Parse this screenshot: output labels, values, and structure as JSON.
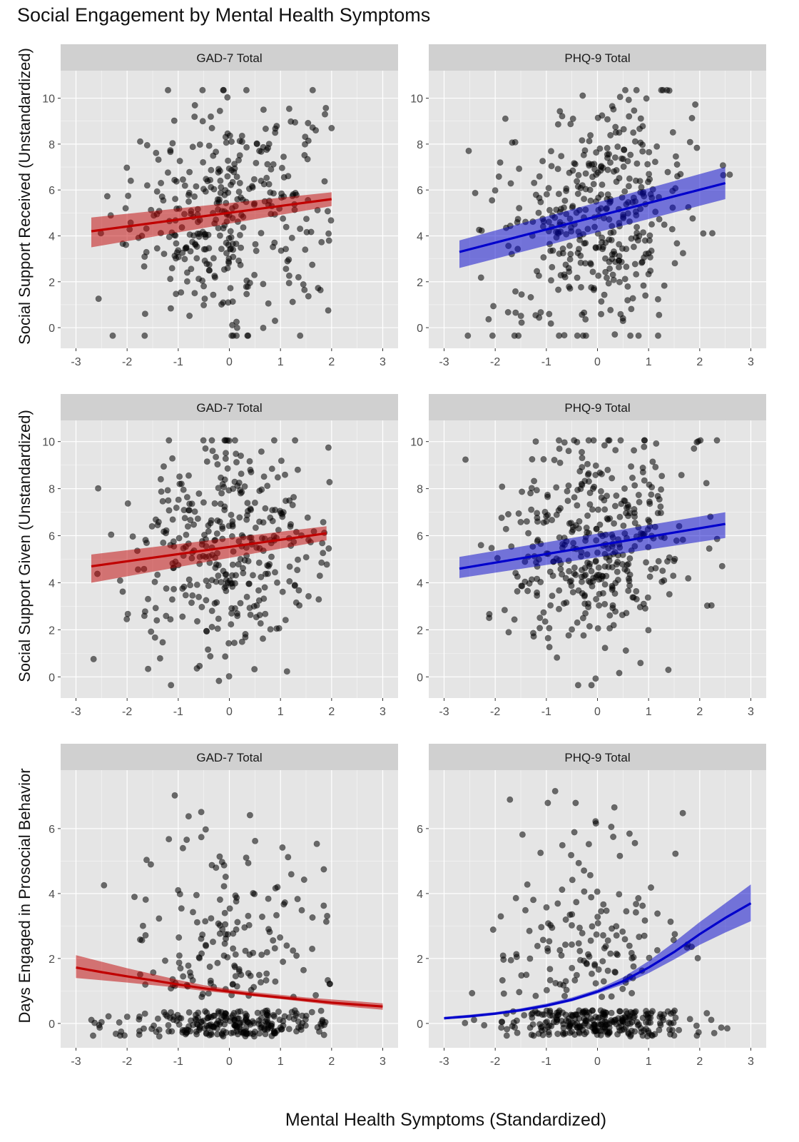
{
  "title": "Social Engagement by Mental Health Symptoms",
  "xlabel": "Mental Health Symptoms (Standardized)",
  "colors": {
    "gad": "#c00000",
    "phq": "#0000cc",
    "panel_bg": "#e5e5e5",
    "strip_bg": "#d0d0d0",
    "grid": "#ffffff",
    "point": "#000000"
  },
  "chart_data": [
    {
      "type": "scatter",
      "row": 0,
      "col": 0,
      "facet": "GAD-7 Total",
      "ylabel": "Social Support Received (Unstandardized)",
      "xlim": [
        -3.3,
        3.3
      ],
      "ylim": [
        -0.9,
        11.2
      ],
      "xticks": [
        -3,
        -2,
        -1,
        0,
        1,
        2,
        3
      ],
      "yticks": [
        0,
        2,
        4,
        6,
        8,
        10
      ],
      "fit": {
        "x": [
          -2.7,
          2.0
        ],
        "y": [
          4.2,
          5.6
        ],
        "ci_low": [
          3.5,
          5.3
        ],
        "ci_high": [
          4.8,
          5.9
        ]
      },
      "point_count": 360,
      "x_range": [
        -2.7,
        2.0
      ]
    },
    {
      "type": "scatter",
      "row": 0,
      "col": 1,
      "facet": "PHQ-9 Total",
      "ylabel": "",
      "xlim": [
        -3.3,
        3.3
      ],
      "ylim": [
        -0.9,
        11.2
      ],
      "xticks": [
        -3,
        -2,
        -1,
        0,
        1,
        2,
        3
      ],
      "yticks": [
        0,
        2,
        4,
        6,
        8,
        10
      ],
      "fit": {
        "x": [
          -2.7,
          2.5
        ],
        "y": [
          3.3,
          6.3
        ],
        "ci_low": [
          2.6,
          5.6
        ],
        "ci_high": [
          3.8,
          7.0
        ]
      },
      "point_count": 400,
      "x_range": [
        -2.6,
        2.6
      ]
    },
    {
      "type": "scatter",
      "row": 1,
      "col": 0,
      "facet": "GAD-7 Total",
      "ylabel": "Social Support Given (Unstandardized)",
      "xlim": [
        -3.3,
        3.3
      ],
      "ylim": [
        -0.9,
        10.9
      ],
      "xticks": [
        -3,
        -2,
        -1,
        0,
        1,
        2,
        3
      ],
      "yticks": [
        0,
        2,
        4,
        6,
        8,
        10
      ],
      "fit": {
        "x": [
          -2.7,
          1.9
        ],
        "y": [
          4.7,
          6.1
        ],
        "ci_low": [
          4.0,
          5.8
        ],
        "ci_high": [
          5.2,
          6.4
        ]
      },
      "point_count": 360,
      "x_range": [
        -2.7,
        2.0
      ]
    },
    {
      "type": "scatter",
      "row": 1,
      "col": 1,
      "facet": "PHQ-9 Total",
      "ylabel": "",
      "xlim": [
        -3.3,
        3.3
      ],
      "ylim": [
        -0.9,
        10.9
      ],
      "xticks": [
        -3,
        -2,
        -1,
        0,
        1,
        2,
        3
      ],
      "yticks": [
        0,
        2,
        4,
        6,
        8,
        10
      ],
      "fit": {
        "x": [
          -2.7,
          2.5
        ],
        "y": [
          4.6,
          6.5
        ],
        "ci_low": [
          4.2,
          5.9
        ],
        "ci_high": [
          5.1,
          7.0
        ]
      },
      "point_count": 400,
      "x_range": [
        -2.6,
        2.6
      ]
    },
    {
      "type": "scatter",
      "row": 2,
      "col": 0,
      "facet": "GAD-7 Total",
      "ylabel": "Days Engaged in Prosocial Behavior",
      "xlim": [
        -3.3,
        3.3
      ],
      "ylim": [
        -0.75,
        7.8
      ],
      "xticks": [
        -3,
        -2,
        -1,
        0,
        1,
        2,
        3
      ],
      "yticks": [
        0,
        2,
        4,
        6
      ],
      "fit": {
        "x": [
          -3.0,
          -2.5,
          -2.0,
          -1.5,
          -1.0,
          -0.5,
          0.0,
          0.5,
          1.0,
          1.5,
          2.0,
          2.5,
          3.0
        ],
        "y": [
          1.72,
          1.58,
          1.45,
          1.33,
          1.2,
          1.08,
          0.98,
          0.88,
          0.8,
          0.72,
          0.64,
          0.58,
          0.52
        ],
        "ci_low": [
          1.4,
          1.33,
          1.26,
          1.18,
          1.1,
          1.0,
          0.92,
          0.83,
          0.75,
          0.66,
          0.57,
          0.49,
          0.42
        ],
        "ci_high": [
          2.1,
          1.9,
          1.7,
          1.52,
          1.34,
          1.18,
          1.06,
          0.96,
          0.88,
          0.8,
          0.74,
          0.68,
          0.62
        ]
      },
      "point_count": 400,
      "x_range": [
        -2.7,
        2.0
      ]
    },
    {
      "type": "scatter",
      "row": 2,
      "col": 1,
      "facet": "PHQ-9 Total",
      "ylabel": "",
      "xlim": [
        -3.3,
        3.3
      ],
      "ylim": [
        -0.75,
        7.8
      ],
      "xticks": [
        -3,
        -2,
        -1,
        0,
        1,
        2,
        3
      ],
      "yticks": [
        0,
        2,
        4,
        6
      ],
      "fit": {
        "x": [
          -3.0,
          -2.5,
          -2.0,
          -1.5,
          -1.0,
          -0.5,
          0.0,
          0.5,
          1.0,
          1.5,
          2.0,
          2.5,
          3.0
        ],
        "y": [
          0.16,
          0.22,
          0.3,
          0.41,
          0.55,
          0.73,
          0.98,
          1.3,
          1.72,
          2.2,
          2.75,
          3.25,
          3.7
        ],
        "ci_low": [
          0.12,
          0.18,
          0.26,
          0.36,
          0.5,
          0.68,
          0.92,
          1.2,
          1.55,
          1.97,
          2.42,
          2.8,
          3.15
        ],
        "ci_high": [
          0.2,
          0.27,
          0.35,
          0.46,
          0.61,
          0.8,
          1.05,
          1.42,
          1.92,
          2.5,
          3.12,
          3.7,
          4.28
        ]
      },
      "point_count": 420,
      "x_range": [
        -2.6,
        2.6
      ]
    }
  ]
}
